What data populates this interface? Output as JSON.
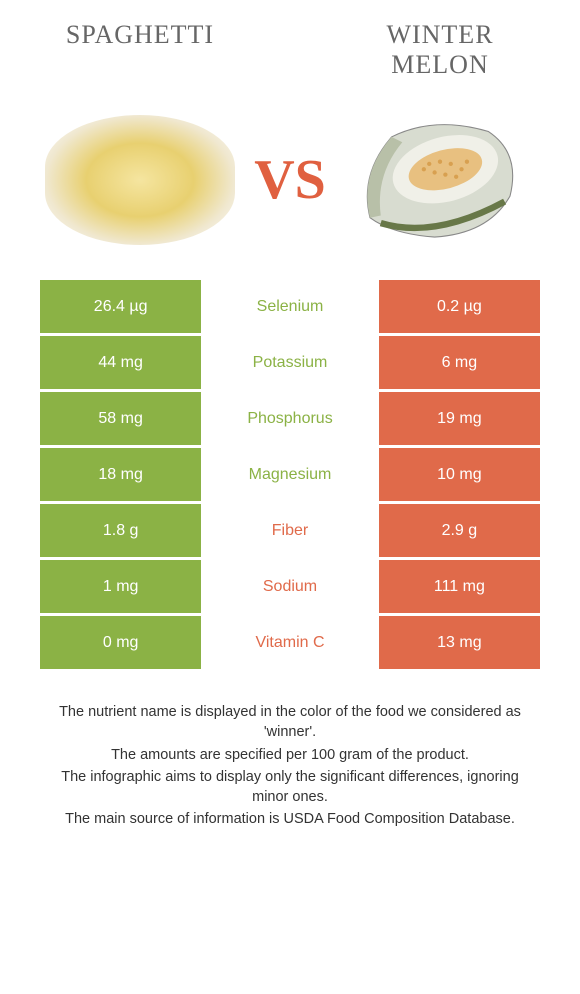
{
  "header": {
    "left_title": "Spaghetti",
    "right_title": "Winter melon",
    "vs": "VS"
  },
  "colors": {
    "left": "#8bb245",
    "right": "#e06a4a",
    "left_text": "#8bb245",
    "right_text": "#e06a4a"
  },
  "rows": [
    {
      "left": "26.4 µg",
      "mid": "Selenium",
      "right": "0.2 µg",
      "winner": "left"
    },
    {
      "left": "44 mg",
      "mid": "Potassium",
      "right": "6 mg",
      "winner": "left"
    },
    {
      "left": "58 mg",
      "mid": "Phosphorus",
      "right": "19 mg",
      "winner": "left"
    },
    {
      "left": "18 mg",
      "mid": "Magnesium",
      "right": "10 mg",
      "winner": "left"
    },
    {
      "left": "1.8 g",
      "mid": "Fiber",
      "right": "2.9 g",
      "winner": "right"
    },
    {
      "left": "1 mg",
      "mid": "Sodium",
      "right": "111 mg",
      "winner": "right"
    },
    {
      "left": "0 mg",
      "mid": "Vitamin C",
      "right": "13 mg",
      "winner": "right"
    }
  ],
  "footer": [
    "The nutrient name is displayed in the color of the food we considered as 'winner'.",
    "The amounts are specified per 100 gram of the product.",
    "The infographic aims to display only the significant differences, ignoring minor ones.",
    "The main source of information is USDA Food Composition Database."
  ]
}
